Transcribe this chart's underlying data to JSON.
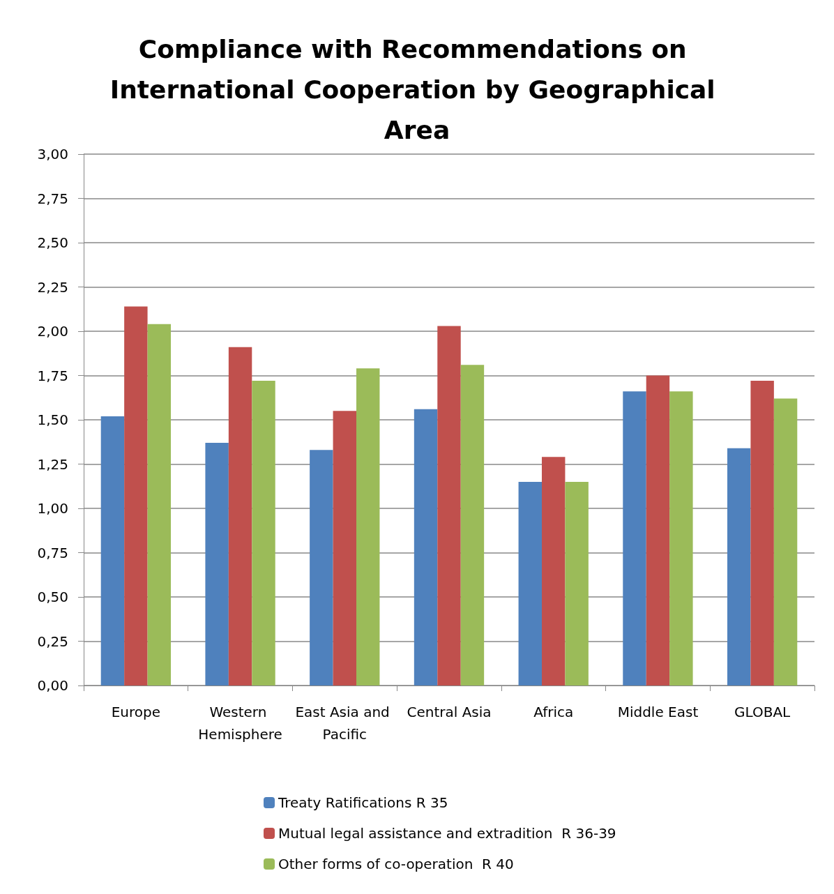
{
  "chart_data": {
    "type": "bar",
    "title": "Compliance with Recommendations on International Cooperation by Geographical Area",
    "categories": [
      "Europe",
      "Western Hemisphere",
      "East Asia and Pacific",
      "Central Asia",
      "Africa",
      "Middle East",
      "GLOBAL"
    ],
    "series": [
      {
        "name": "Treaty Ratifications R 35",
        "color": "#4f81bd",
        "values": [
          1.52,
          1.37,
          1.33,
          1.56,
          1.15,
          1.66,
          1.34
        ]
      },
      {
        "name": "Mutual legal assistance and extradition  R 36-39",
        "color": "#c0504d",
        "values": [
          2.14,
          1.91,
          1.55,
          2.03,
          1.29,
          1.75,
          1.72
        ]
      },
      {
        "name": "Other forms of co-operation  R 40",
        "color": "#9bbb59",
        "values": [
          2.04,
          1.72,
          1.79,
          1.81,
          1.15,
          1.66,
          1.62
        ]
      }
    ],
    "ylim": [
      0,
      3
    ],
    "yticks": [
      {
        "value": 0,
        "label": "0,00"
      },
      {
        "value": 0.25,
        "label": "0,25"
      },
      {
        "value": 0.5,
        "label": "0,50"
      },
      {
        "value": 0.75,
        "label": "0,75"
      },
      {
        "value": 1,
        "label": "1,00"
      },
      {
        "value": 1.25,
        "label": "1,25"
      },
      {
        "value": 1.5,
        "label": "1,50"
      },
      {
        "value": 1.75,
        "label": "1,75"
      },
      {
        "value": 2,
        "label": "2,00"
      },
      {
        "value": 2.25,
        "label": "2,25"
      },
      {
        "value": 2.5,
        "label": "2,50"
      },
      {
        "value": 2.75,
        "label": "2,75"
      },
      {
        "value": 3,
        "label": "3,00"
      }
    ],
    "grid": "y",
    "legend": "bottom"
  }
}
